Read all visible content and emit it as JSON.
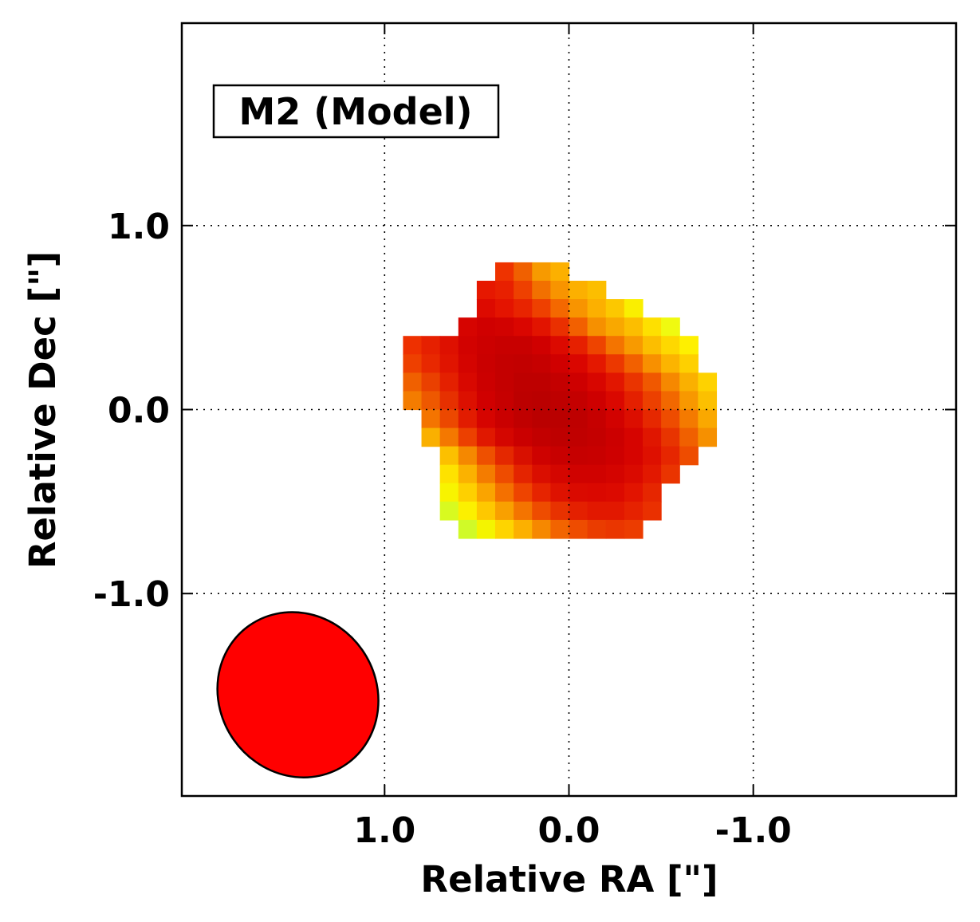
{
  "chart_data": {
    "type": "heatmap",
    "title": "M2 (Model)",
    "xlabel": "Relative RA [\"]",
    "ylabel": "Relative Dec [\"]",
    "xlim": [
      2.1,
      -2.1
    ],
    "ylim": [
      -2.1,
      2.1
    ],
    "x_inverted": true,
    "grid": true,
    "xticks": [
      1.0,
      0.0,
      -1.0
    ],
    "yticks": [
      1.0,
      0.0,
      -1.0
    ],
    "xtick_labels": [
      "1.0",
      "0.0",
      "-1.0"
    ],
    "ytick_labels": [
      "1.0",
      "0.0",
      "-1.0"
    ],
    "pixel_size_arcsec": 0.1,
    "colormap": "hot (yellow low, dark red high)",
    "pixels": [
      [
        0.35,
        0.75,
        "#ee3300"
      ],
      [
        0.25,
        0.75,
        "#f06000"
      ],
      [
        0.15,
        0.75,
        "#f79a00"
      ],
      [
        0.05,
        0.75,
        "#fcb000"
      ],
      [
        0.45,
        0.65,
        "#e61800"
      ],
      [
        0.35,
        0.65,
        "#e82000"
      ],
      [
        0.25,
        0.65,
        "#ee4000"
      ],
      [
        0.15,
        0.65,
        "#f27000"
      ],
      [
        0.05,
        0.65,
        "#f89400"
      ],
      [
        -0.05,
        0.65,
        "#fcb000"
      ],
      [
        -0.15,
        0.65,
        "#fcbe00"
      ],
      [
        0.45,
        0.55,
        "#dd0a00"
      ],
      [
        0.35,
        0.55,
        "#e41400"
      ],
      [
        0.25,
        0.55,
        "#e82400"
      ],
      [
        0.15,
        0.55,
        "#ee4000"
      ],
      [
        0.05,
        0.55,
        "#f46800"
      ],
      [
        -0.05,
        0.55,
        "#f89400"
      ],
      [
        -0.15,
        0.55,
        "#fcb000"
      ],
      [
        -0.25,
        0.55,
        "#fcc800"
      ],
      [
        -0.35,
        0.55,
        "#faef00"
      ],
      [
        0.55,
        0.45,
        "#d60400"
      ],
      [
        0.45,
        0.45,
        "#d00000"
      ],
      [
        0.35,
        0.45,
        "#d20200"
      ],
      [
        0.25,
        0.45,
        "#da0600"
      ],
      [
        0.15,
        0.45,
        "#e21400"
      ],
      [
        0.05,
        0.45,
        "#ea3000"
      ],
      [
        -0.05,
        0.45,
        "#f26000"
      ],
      [
        -0.15,
        0.45,
        "#f69000"
      ],
      [
        -0.25,
        0.45,
        "#f9a800"
      ],
      [
        -0.35,
        0.45,
        "#fcbe00"
      ],
      [
        -0.45,
        0.45,
        "#fee000"
      ],
      [
        -0.55,
        0.45,
        "#f0fa10"
      ],
      [
        0.85,
        0.35,
        "#ee3000"
      ],
      [
        0.75,
        0.35,
        "#e62000"
      ],
      [
        0.65,
        0.35,
        "#de1000"
      ],
      [
        0.55,
        0.35,
        "#d20200"
      ],
      [
        0.45,
        0.35,
        "#cc0000"
      ],
      [
        0.35,
        0.35,
        "#c80000"
      ],
      [
        0.25,
        0.35,
        "#c80000"
      ],
      [
        0.15,
        0.35,
        "#d00000"
      ],
      [
        0.05,
        0.35,
        "#dc0a00"
      ],
      [
        -0.05,
        0.35,
        "#e62000"
      ],
      [
        -0.15,
        0.35,
        "#ee4400"
      ],
      [
        -0.25,
        0.35,
        "#f47400"
      ],
      [
        -0.35,
        0.35,
        "#f89a00"
      ],
      [
        -0.45,
        0.35,
        "#fcbe00"
      ],
      [
        -0.55,
        0.35,
        "#fed800"
      ],
      [
        -0.65,
        0.35,
        "#fef000"
      ],
      [
        0.85,
        0.25,
        "#ee4000"
      ],
      [
        0.75,
        0.25,
        "#e82800"
      ],
      [
        0.65,
        0.25,
        "#e01400"
      ],
      [
        0.55,
        0.25,
        "#d40400"
      ],
      [
        0.45,
        0.25,
        "#ca0000"
      ],
      [
        0.35,
        0.25,
        "#c40000"
      ],
      [
        0.25,
        0.25,
        "#c20000"
      ],
      [
        0.15,
        0.25,
        "#c60000"
      ],
      [
        0.05,
        0.25,
        "#d00000"
      ],
      [
        -0.05,
        0.25,
        "#da0600"
      ],
      [
        -0.15,
        0.25,
        "#e41800"
      ],
      [
        -0.25,
        0.25,
        "#ec3800"
      ],
      [
        -0.35,
        0.25,
        "#f26000"
      ],
      [
        -0.45,
        0.25,
        "#f89000"
      ],
      [
        -0.55,
        0.25,
        "#fcb400"
      ],
      [
        -0.65,
        0.25,
        "#fed000"
      ],
      [
        0.85,
        0.15,
        "#f06000"
      ],
      [
        0.75,
        0.15,
        "#ea4000"
      ],
      [
        0.65,
        0.15,
        "#e42000"
      ],
      [
        0.55,
        0.15,
        "#d80800"
      ],
      [
        0.45,
        0.15,
        "#cc0000"
      ],
      [
        0.35,
        0.15,
        "#c40000"
      ],
      [
        0.25,
        0.15,
        "#be0000"
      ],
      [
        0.15,
        0.15,
        "#be0000"
      ],
      [
        0.05,
        0.15,
        "#c40000"
      ],
      [
        -0.05,
        0.15,
        "#ce0000"
      ],
      [
        -0.15,
        0.15,
        "#d80600"
      ],
      [
        -0.25,
        0.15,
        "#e21600"
      ],
      [
        -0.35,
        0.15,
        "#ea3400"
      ],
      [
        -0.45,
        0.15,
        "#f05800"
      ],
      [
        -0.55,
        0.15,
        "#f68800"
      ],
      [
        -0.65,
        0.15,
        "#fab000"
      ],
      [
        -0.75,
        0.15,
        "#fed200"
      ],
      [
        0.85,
        0.05,
        "#f47c00"
      ],
      [
        0.75,
        0.05,
        "#ee5800"
      ],
      [
        0.65,
        0.05,
        "#e63000"
      ],
      [
        0.55,
        0.05,
        "#dc1000"
      ],
      [
        0.45,
        0.05,
        "#d00000"
      ],
      [
        0.35,
        0.05,
        "#c60000"
      ],
      [
        0.25,
        0.05,
        "#bc0000"
      ],
      [
        0.15,
        0.05,
        "#ba0000"
      ],
      [
        0.05,
        0.05,
        "#be0000"
      ],
      [
        -0.05,
        0.05,
        "#c40000"
      ],
      [
        -0.15,
        0.05,
        "#ce0000"
      ],
      [
        -0.25,
        0.05,
        "#da0800"
      ],
      [
        -0.35,
        0.05,
        "#e42000"
      ],
      [
        -0.45,
        0.05,
        "#ec4000"
      ],
      [
        -0.55,
        0.05,
        "#f26800"
      ],
      [
        -0.65,
        0.05,
        "#f89800"
      ],
      [
        -0.75,
        0.05,
        "#fcc000"
      ],
      [
        0.75,
        -0.05,
        "#f47400"
      ],
      [
        0.65,
        -0.05,
        "#ec4800"
      ],
      [
        0.55,
        -0.05,
        "#e21c00"
      ],
      [
        0.45,
        -0.05,
        "#d60400"
      ],
      [
        0.35,
        -0.05,
        "#ca0000"
      ],
      [
        0.25,
        -0.05,
        "#c00000"
      ],
      [
        0.15,
        -0.05,
        "#ba0000"
      ],
      [
        0.05,
        -0.05,
        "#ba0000"
      ],
      [
        -0.05,
        -0.05,
        "#be0000"
      ],
      [
        -0.15,
        -0.05,
        "#c60000"
      ],
      [
        -0.25,
        -0.05,
        "#d20200"
      ],
      [
        -0.35,
        -0.05,
        "#dc0e00"
      ],
      [
        -0.45,
        -0.05,
        "#e62800"
      ],
      [
        -0.55,
        -0.05,
        "#ee4c00"
      ],
      [
        -0.65,
        -0.05,
        "#f47a00"
      ],
      [
        -0.75,
        -0.05,
        "#faa800"
      ],
      [
        0.75,
        -0.15,
        "#fab000"
      ],
      [
        0.65,
        -0.15,
        "#f47800"
      ],
      [
        0.55,
        -0.15,
        "#ec4000"
      ],
      [
        0.45,
        -0.15,
        "#e01800"
      ],
      [
        0.35,
        -0.15,
        "#d40600"
      ],
      [
        0.25,
        -0.15,
        "#ca0000"
      ],
      [
        0.15,
        -0.15,
        "#c20000"
      ],
      [
        0.05,
        -0.15,
        "#be0000"
      ],
      [
        -0.05,
        -0.15,
        "#c00000"
      ],
      [
        -0.15,
        -0.15,
        "#c40000"
      ],
      [
        -0.25,
        -0.15,
        "#cc0000"
      ],
      [
        -0.35,
        -0.15,
        "#d60400"
      ],
      [
        -0.45,
        -0.15,
        "#e01600"
      ],
      [
        -0.55,
        -0.15,
        "#e83400"
      ],
      [
        -0.65,
        -0.15,
        "#f06000"
      ],
      [
        -0.75,
        -0.15,
        "#f69000"
      ],
      [
        0.65,
        -0.25,
        "#fcc000"
      ],
      [
        0.55,
        -0.25,
        "#f58800"
      ],
      [
        0.45,
        -0.25,
        "#ee5000"
      ],
      [
        0.35,
        -0.25,
        "#e42800"
      ],
      [
        0.25,
        -0.25,
        "#d81000"
      ],
      [
        0.15,
        -0.25,
        "#ce0200"
      ],
      [
        0.05,
        -0.25,
        "#c80000"
      ],
      [
        -0.05,
        -0.25,
        "#c60000"
      ],
      [
        -0.15,
        -0.25,
        "#c80000"
      ],
      [
        -0.25,
        -0.25,
        "#ce0000"
      ],
      [
        -0.35,
        -0.25,
        "#d60400"
      ],
      [
        -0.45,
        -0.25,
        "#de1000"
      ],
      [
        -0.55,
        -0.25,
        "#e62600"
      ],
      [
        -0.65,
        -0.25,
        "#ee4c00"
      ],
      [
        0.65,
        -0.35,
        "#fee200"
      ],
      [
        0.55,
        -0.35,
        "#fbb200"
      ],
      [
        0.45,
        -0.35,
        "#f47c00"
      ],
      [
        0.35,
        -0.35,
        "#ee4c00"
      ],
      [
        0.25,
        -0.35,
        "#e42400"
      ],
      [
        0.15,
        -0.35,
        "#da0e00"
      ],
      [
        0.05,
        -0.35,
        "#d40600"
      ],
      [
        -0.05,
        -0.35,
        "#d00200"
      ],
      [
        -0.15,
        -0.35,
        "#d00200"
      ],
      [
        -0.25,
        -0.35,
        "#d40400"
      ],
      [
        -0.35,
        -0.35,
        "#da0a00"
      ],
      [
        -0.45,
        -0.35,
        "#e21800"
      ],
      [
        -0.55,
        -0.35,
        "#ea3400"
      ],
      [
        0.65,
        -0.45,
        "#f8f400"
      ],
      [
        0.55,
        -0.45,
        "#fed000"
      ],
      [
        0.45,
        -0.45,
        "#faa400"
      ],
      [
        0.35,
        -0.45,
        "#f47000"
      ],
      [
        0.25,
        -0.45,
        "#ee4400"
      ],
      [
        0.15,
        -0.45,
        "#e62400"
      ],
      [
        0.05,
        -0.45,
        "#de1200"
      ],
      [
        -0.05,
        -0.45,
        "#da0a00"
      ],
      [
        -0.15,
        -0.45,
        "#da0800"
      ],
      [
        -0.25,
        -0.45,
        "#dc0a00"
      ],
      [
        -0.35,
        -0.45,
        "#e21400"
      ],
      [
        -0.45,
        -0.45,
        "#e62600"
      ],
      [
        0.65,
        -0.55,
        "#d8fa20"
      ],
      [
        0.55,
        -0.55,
        "#fcf000"
      ],
      [
        0.45,
        -0.55,
        "#fec800"
      ],
      [
        0.35,
        -0.55,
        "#f9a000"
      ],
      [
        0.25,
        -0.55,
        "#f47400"
      ],
      [
        0.15,
        -0.55,
        "#ee4c00"
      ],
      [
        0.05,
        -0.55,
        "#e83200"
      ],
      [
        -0.05,
        -0.55,
        "#e42000"
      ],
      [
        -0.15,
        -0.55,
        "#e21800"
      ],
      [
        -0.25,
        -0.55,
        "#e21800"
      ],
      [
        -0.35,
        -0.55,
        "#e62200"
      ],
      [
        -0.45,
        -0.55,
        "#ea3000"
      ],
      [
        0.55,
        -0.65,
        "#d0fa28"
      ],
      [
        0.45,
        -0.65,
        "#f4f400"
      ],
      [
        0.35,
        -0.65,
        "#fed400"
      ],
      [
        0.25,
        -0.65,
        "#fcb000"
      ],
      [
        0.15,
        -0.65,
        "#f68800"
      ],
      [
        0.05,
        -0.65,
        "#f26400"
      ],
      [
        -0.05,
        -0.65,
        "#ee4c00"
      ],
      [
        -0.15,
        -0.65,
        "#ea3c00"
      ],
      [
        -0.25,
        -0.65,
        "#ea3600"
      ],
      [
        -0.35,
        -0.65,
        "#ec3c00"
      ]
    ],
    "beam": {
      "center": [
        1.47,
        -1.55
      ],
      "major_axis_arcsec": 0.92,
      "minor_axis_arcsec": 0.85,
      "position_angle_deg": -35,
      "fill_color": "#ff0000",
      "edge_color": "#000000"
    }
  }
}
